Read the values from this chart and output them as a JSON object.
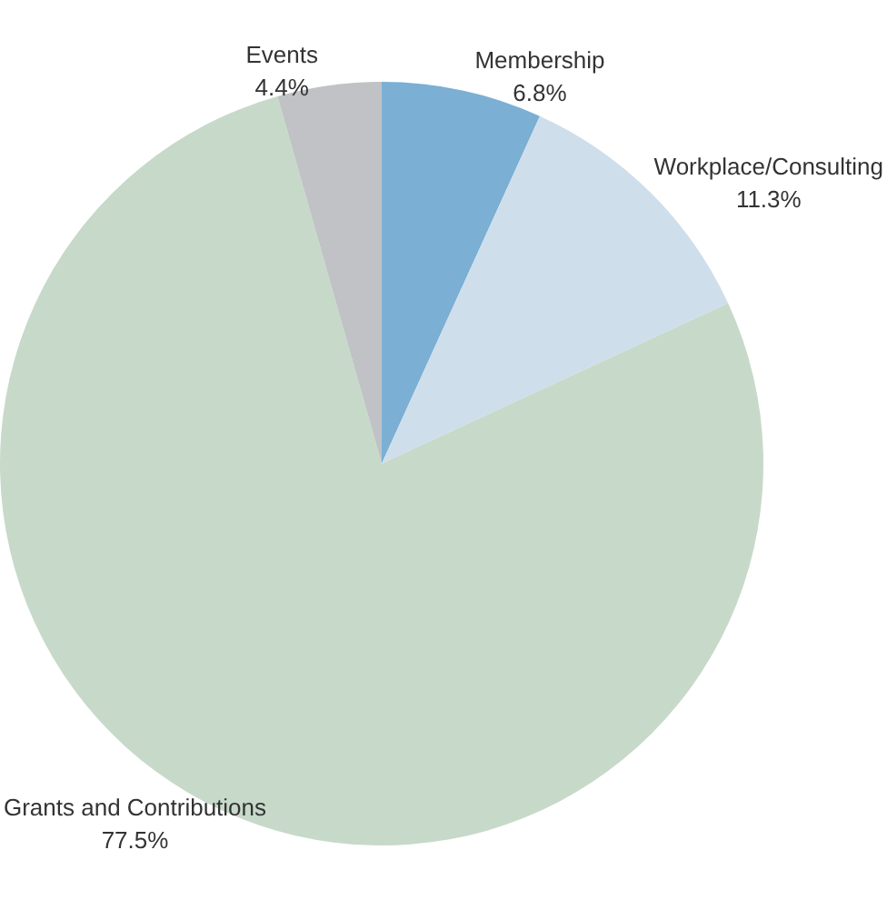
{
  "chart_data": {
    "type": "pie",
    "categories": [
      "Membership",
      "Workplace/Consulting",
      "Grants and Contributions",
      "Events"
    ],
    "values": [
      6.8,
      11.3,
      77.5,
      4.4
    ],
    "colors": [
      "#7bafd4",
      "#cfdeeb",
      "#c7d9c9",
      "#c0c2c6"
    ],
    "value_labels": [
      "6.8%",
      "11.3%",
      "77.5%",
      "4.4%"
    ],
    "legend": false
  }
}
